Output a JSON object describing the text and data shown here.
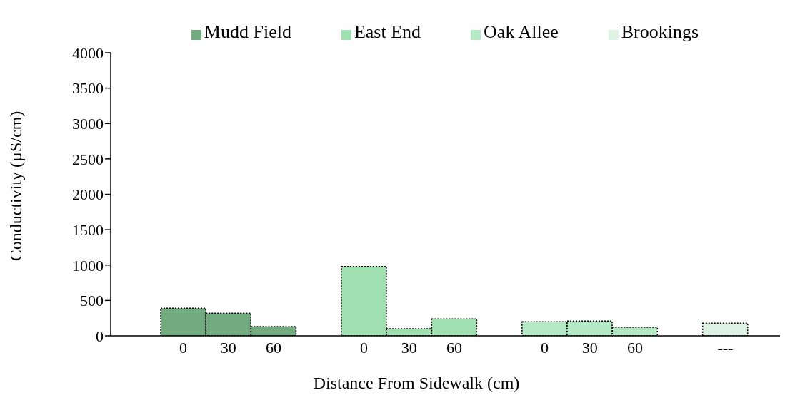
{
  "chart_data": {
    "type": "bar",
    "xlabel": "Distance From Sidewalk (cm)",
    "ylabel": "Conductivity (µS/cm)",
    "categories": [
      "0",
      "30",
      "60",
      null,
      "0",
      "30",
      "60",
      null,
      "0",
      "30",
      "60",
      null,
      "---"
    ],
    "series": [
      {
        "name": "Mudd Field",
        "color": "#72ab80",
        "values": [
          390,
          320,
          130,
          null,
          null,
          null,
          null,
          null,
          null,
          null,
          null,
          null,
          null
        ]
      },
      {
        "name": "East End",
        "color": "#a0e0b0",
        "values": [
          null,
          null,
          null,
          null,
          980,
          100,
          240,
          null,
          null,
          null,
          null,
          null,
          null
        ]
      },
      {
        "name": "Oak Allee",
        "color": "#b5e8c5",
        "values": [
          null,
          null,
          null,
          null,
          null,
          null,
          null,
          null,
          200,
          210,
          120,
          null,
          null
        ]
      },
      {
        "name": "Brookings",
        "color": "#dff3e4",
        "values": [
          null,
          null,
          null,
          null,
          null,
          null,
          null,
          null,
          null,
          null,
          null,
          null,
          180
        ]
      }
    ],
    "ylim": [
      0,
      4000
    ],
    "yticks": [
      0,
      500,
      1000,
      1500,
      2000,
      2500,
      3000,
      3500,
      4000
    ],
    "grid": false,
    "legend": "top"
  }
}
